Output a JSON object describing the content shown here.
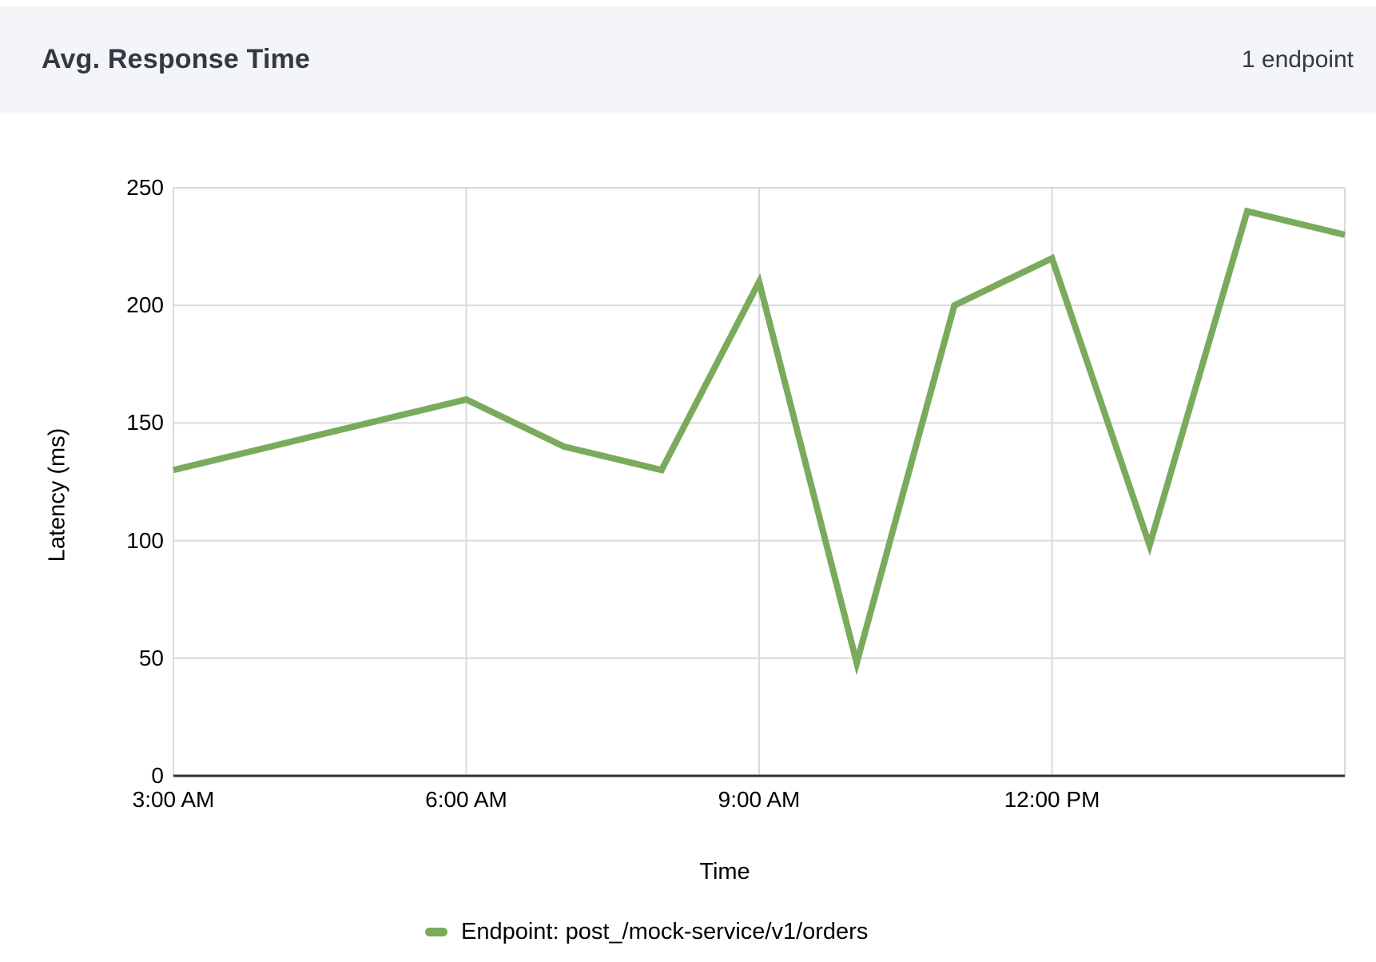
{
  "header": {
    "title": "Avg. Response Time",
    "endpoint_count": "1 endpoint"
  },
  "chart_data": {
    "type": "line",
    "title": "Avg. Response Time",
    "xlabel": "Time",
    "ylabel": "Latency (ms)",
    "x": [
      "3:00 AM",
      "4:00 AM",
      "5:00 AM",
      "6:00 AM",
      "7:00 AM",
      "8:00 AM",
      "9:00 AM",
      "10:00 AM",
      "11:00 AM",
      "12:00 PM",
      "1:00 PM",
      "2:00 PM",
      "3:00 PM"
    ],
    "series": [
      {
        "name": "Endpoint: post_/mock-service/v1/orders",
        "color": "#7aab5c",
        "values": [
          130,
          140,
          150,
          160,
          140,
          130,
          210,
          48,
          200,
          220,
          98,
          240,
          230
        ]
      }
    ],
    "ylim": [
      0,
      250
    ],
    "y_ticks": [
      0,
      50,
      100,
      150,
      200,
      250
    ],
    "x_tick_indices": [
      0,
      3,
      6,
      9
    ],
    "x_tick_labels": [
      "3:00 AM",
      "6:00 AM",
      "9:00 AM",
      "12:00 PM"
    ],
    "grid": true,
    "legend_position": "bottom"
  },
  "colors": {
    "line": "#7aab5c",
    "grid": "#d9d9d9",
    "axis": "#333333",
    "header_bg": "#f4f5f8",
    "header_text": "#333942",
    "tick_text": "#000000"
  }
}
